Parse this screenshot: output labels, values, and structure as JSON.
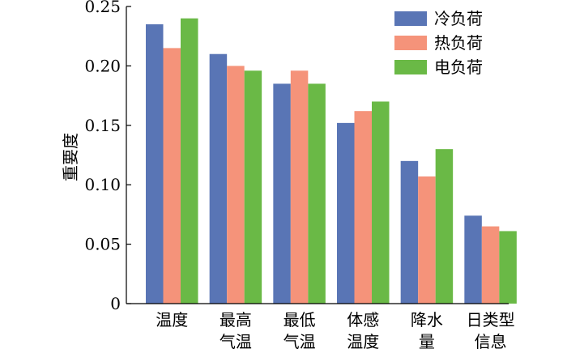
{
  "chart_data": {
    "type": "bar",
    "title": "",
    "xlabel": "",
    "ylabel": "重要度",
    "ylim": [
      0,
      0.25
    ],
    "yticks": [
      "0",
      "0.05",
      "0.10",
      "0.15",
      "0.20",
      "0.25"
    ],
    "yticks_values": [
      0,
      0.05,
      0.1,
      0.15,
      0.2,
      0.25
    ],
    "grid": false,
    "legend_position": "top-right",
    "categories": [
      [
        "温度"
      ],
      [
        "最高",
        "气温"
      ],
      [
        "最低",
        "气温"
      ],
      [
        "体感",
        "温度"
      ],
      [
        "降水",
        "量"
      ],
      [
        "日类型",
        "信息"
      ]
    ],
    "series": [
      {
        "name": "冷负荷",
        "color": "#5975b5",
        "values": [
          0.235,
          0.21,
          0.185,
          0.152,
          0.12,
          0.074
        ]
      },
      {
        "name": "热负荷",
        "color": "#f5937a",
        "values": [
          0.215,
          0.2,
          0.196,
          0.162,
          0.107,
          0.065
        ]
      },
      {
        "name": "电负荷",
        "color": "#6ab946",
        "values": [
          0.24,
          0.196,
          0.185,
          0.17,
          0.13,
          0.061
        ]
      }
    ]
  }
}
